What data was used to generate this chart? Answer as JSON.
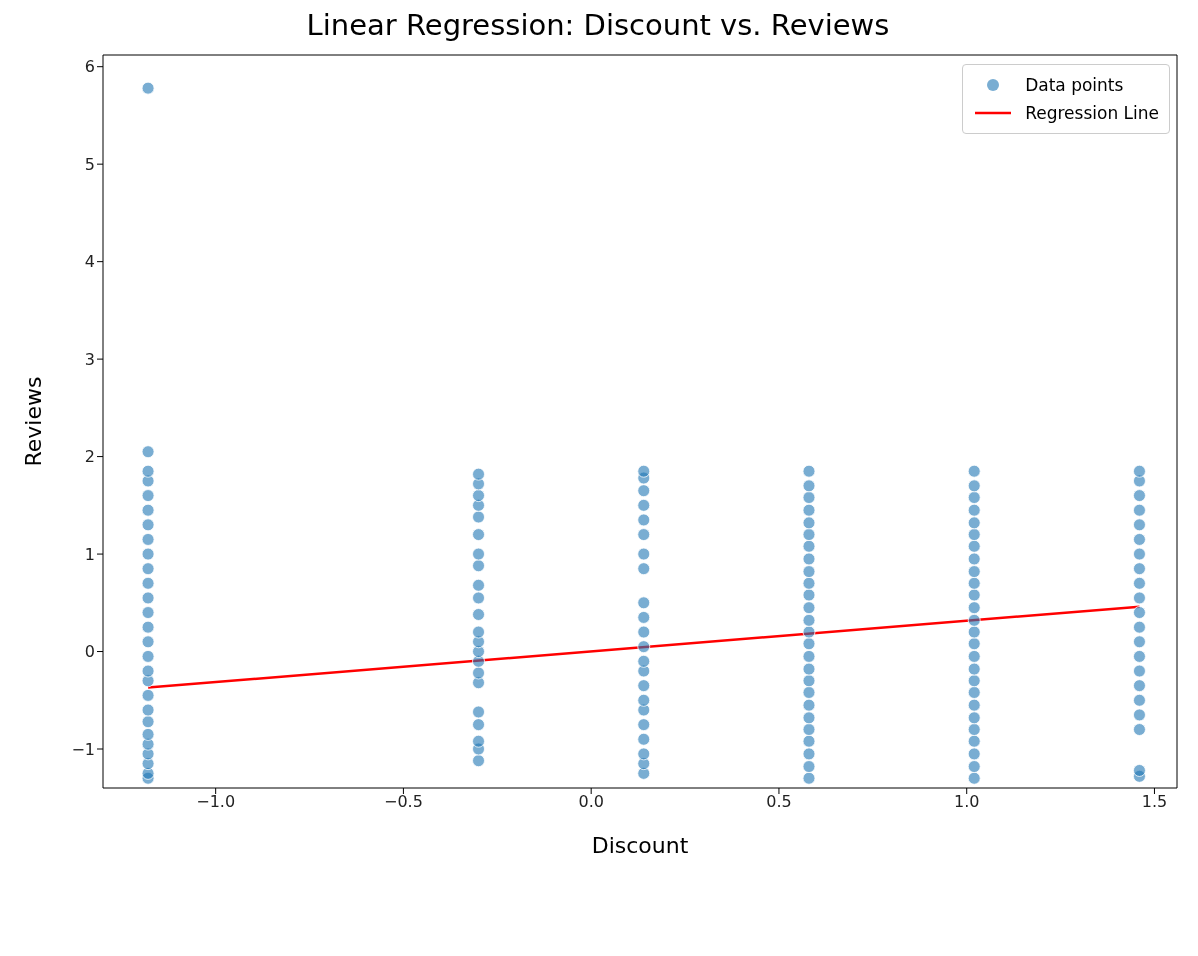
{
  "chart_data": {
    "type": "scatter",
    "title": "Linear Regression: Discount vs. Reviews",
    "xlabel": "Discount",
    "ylabel": "Reviews",
    "xlim": [
      -1.3,
      1.56
    ],
    "ylim": [
      -1.4,
      6.12
    ],
    "xticks": [
      {
        "value": -1,
        "label": "−1.0"
      },
      {
        "value": -0.5,
        "label": "−0.5"
      },
      {
        "value": 0,
        "label": "0.0"
      },
      {
        "value": 0.5,
        "label": "0.5"
      },
      {
        "value": 1,
        "label": "1.0"
      },
      {
        "value": 1.5,
        "label": "1.5"
      }
    ],
    "yticks": [
      {
        "value": -1,
        "label": "−1"
      },
      0,
      1,
      2,
      3,
      4,
      5,
      6
    ],
    "legend": "top right",
    "series": [
      {
        "name": "Data points",
        "marker": "circle",
        "color": "#1f77b4",
        "x": [
          -1.18,
          -1.18,
          -1.18,
          -1.18,
          -1.18,
          -1.18,
          -1.18,
          -1.18,
          -1.18,
          -1.18,
          -1.18,
          -1.18,
          -1.18,
          -1.18,
          -1.18,
          -1.18,
          -1.18,
          -1.18,
          -1.18,
          -1.18,
          -1.18,
          -1.18,
          -1.18,
          -1.18,
          -1.18,
          -1.18,
          -1.18,
          -0.3,
          -0.3,
          -0.3,
          -0.3,
          -0.3,
          -0.3,
          -0.3,
          -0.3,
          -0.3,
          -0.3,
          -0.3,
          -0.3,
          -0.3,
          -0.3,
          -0.3,
          -0.3,
          -0.3,
          -0.3,
          -0.3,
          -0.3,
          -0.3,
          -0.3,
          0.14,
          0.14,
          0.14,
          0.14,
          0.14,
          0.14,
          0.14,
          0.14,
          0.14,
          0.14,
          0.14,
          0.14,
          0.14,
          0.14,
          0.14,
          0.14,
          0.14,
          0.14,
          0.14,
          0.14,
          0.14,
          0.14,
          0.58,
          0.58,
          0.58,
          0.58,
          0.58,
          0.58,
          0.58,
          0.58,
          0.58,
          0.58,
          0.58,
          0.58,
          0.58,
          0.58,
          0.58,
          0.58,
          0.58,
          0.58,
          0.58,
          0.58,
          0.58,
          0.58,
          0.58,
          0.58,
          0.58,
          0.58,
          1.02,
          1.02,
          1.02,
          1.02,
          1.02,
          1.02,
          1.02,
          1.02,
          1.02,
          1.02,
          1.02,
          1.02,
          1.02,
          1.02,
          1.02,
          1.02,
          1.02,
          1.02,
          1.02,
          1.02,
          1.02,
          1.02,
          1.02,
          1.02,
          1.02,
          1.02,
          1.46,
          1.46,
          1.46,
          1.46,
          1.46,
          1.46,
          1.46,
          1.46,
          1.46,
          1.46,
          1.46,
          1.46,
          1.46,
          1.46,
          1.46,
          1.46,
          1.46,
          1.46,
          1.46,
          1.46,
          1.46
        ],
        "values": [
          -1.3,
          -1.25,
          -1.15,
          -1.05,
          -0.95,
          -0.85,
          -0.72,
          -0.6,
          -0.45,
          -0.3,
          -0.2,
          -0.05,
          0.1,
          0.25,
          0.4,
          0.55,
          0.7,
          0.85,
          1.0,
          1.15,
          1.3,
          1.45,
          1.6,
          1.75,
          1.85,
          2.05,
          5.78,
          -1.12,
          -1.0,
          -0.92,
          -0.75,
          -0.62,
          -0.32,
          -0.22,
          -0.1,
          0.0,
          0.1,
          0.2,
          0.38,
          0.55,
          0.68,
          0.88,
          1.0,
          1.2,
          1.38,
          1.5,
          1.6,
          1.72,
          1.82,
          -1.25,
          -1.15,
          -1.05,
          -0.9,
          -0.75,
          -0.6,
          -0.5,
          -0.35,
          -0.2,
          -0.1,
          0.05,
          0.2,
          0.35,
          0.5,
          0.85,
          1.0,
          1.2,
          1.35,
          1.5,
          1.65,
          1.78,
          1.85,
          -1.3,
          -1.18,
          -1.05,
          -0.92,
          -0.8,
          -0.68,
          -0.55,
          -0.42,
          -0.3,
          -0.18,
          -0.05,
          0.08,
          0.2,
          0.32,
          0.45,
          0.58,
          0.7,
          0.82,
          0.95,
          1.08,
          1.2,
          1.32,
          1.45,
          1.58,
          1.7,
          1.85,
          -1.3,
          -1.18,
          -1.05,
          -0.92,
          -0.8,
          -0.68,
          -0.55,
          -0.42,
          -0.3,
          -0.18,
          -0.05,
          0.08,
          0.2,
          0.32,
          0.45,
          0.58,
          0.7,
          0.82,
          0.95,
          1.08,
          1.2,
          1.32,
          1.45,
          1.58,
          1.7,
          1.85,
          -1.28,
          -1.22,
          -0.8,
          -0.65,
          -0.5,
          -0.35,
          -0.2,
          -0.05,
          0.1,
          0.25,
          0.4,
          0.55,
          0.7,
          0.85,
          1.0,
          1.15,
          1.3,
          1.45,
          1.6,
          1.75,
          1.85
        ]
      },
      {
        "name": "Regression Line",
        "type": "line",
        "color": "#ff0000",
        "x": [
          -1.18,
          1.46
        ],
        "values": [
          -0.37,
          0.46
        ]
      }
    ]
  }
}
